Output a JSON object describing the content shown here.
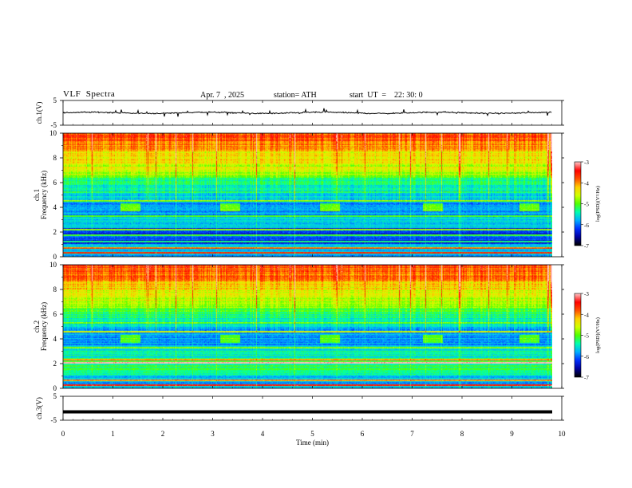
{
  "header": {
    "title": "VLF  Spectra",
    "date": "Apr. 7  , 2025",
    "station": "station= ATH",
    "start": "start  UT  =    22: 30: 0"
  },
  "chart_data": {
    "type": "heatmap",
    "xlabel": "Time  (min)",
    "xlim": [
      0,
      10
    ],
    "xticks": [
      "0",
      "1",
      "2",
      "3",
      "4",
      "5",
      "6",
      "7",
      "8",
      "9",
      "10"
    ],
    "panels": [
      {
        "kind": "timeseries",
        "ylabel": "ch.1(V)",
        "ylim": [
          -5,
          5
        ],
        "yticks": [
          "5",
          "-5"
        ],
        "color": "#000000",
        "level": 0
      },
      {
        "kind": "spectrogram",
        "ylabel": "ch.1\nFrequency  (kHz)",
        "ylim": [
          0,
          10
        ],
        "yticks": [
          "0",
          "2",
          "4",
          "6",
          "8",
          "10"
        ],
        "transmitter_bursts_min": [
          1.35,
          3.35,
          5.35,
          7.4,
          9.35
        ],
        "burst_freq_khz": 4.0,
        "colorbar": {
          "label": "log(PSD)(V²/Hz)",
          "range": [
            -7,
            -3
          ],
          "ticks": [
            "-3",
            "-4",
            "-5",
            "-6",
            "-7"
          ]
        }
      },
      {
        "kind": "spectrogram",
        "ylabel": "ch.2\nFrequency  (kHz)",
        "ylim": [
          0,
          10
        ],
        "yticks": [
          "0",
          "2",
          "4",
          "6",
          "8",
          "10"
        ],
        "transmitter_bursts_min": [
          1.35,
          3.35,
          5.35,
          7.4,
          9.35
        ],
        "burst_freq_khz": 4.0,
        "colorbar": {
          "label": "log(PSD)(V²/Hz)",
          "range": [
            -7,
            -3
          ],
          "ticks": [
            "-3",
            "-4",
            "-5",
            "-6",
            "-7"
          ]
        }
      },
      {
        "kind": "timeseries",
        "ylabel": "ch.3(V)",
        "ylim": [
          -5,
          5
        ],
        "yticks": [
          "5",
          "-5"
        ],
        "color": "#000000",
        "level": -1.5
      }
    ],
    "colormap": [
      "#000000",
      "#0000a0",
      "#0030ff",
      "#00b0ff",
      "#00ffb0",
      "#50ff00",
      "#d0ff00",
      "#ffd000",
      "#ff5000",
      "#ff0000",
      "#ffc0c0"
    ]
  }
}
